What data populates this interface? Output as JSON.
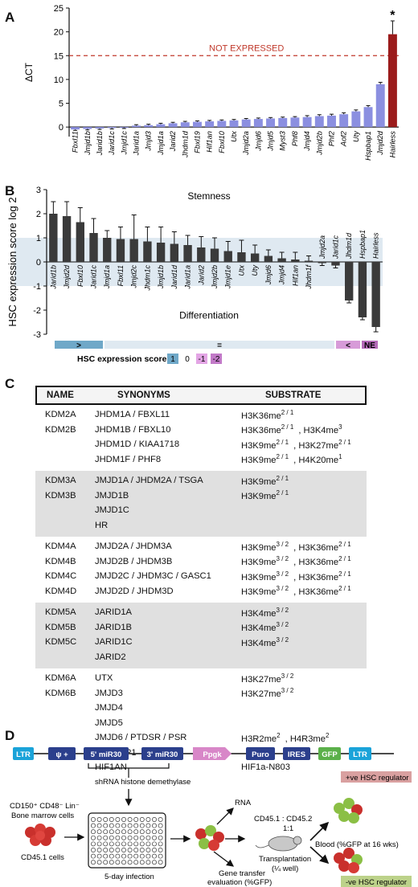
{
  "panels": {
    "a": "A",
    "b": "B",
    "c": "C",
    "d": "D"
  },
  "chart_data": [
    {
      "type": "bar",
      "ylabel": "ΔCT",
      "ylim": [
        -2,
        25
      ],
      "yticks": [
        0,
        5,
        10,
        15,
        20,
        25
      ],
      "reference_line": {
        "value": 15,
        "label": "NOT EXPRESSED",
        "color": "#c0392b"
      },
      "colors": {
        "bar": "#8b8fe0",
        "highlight": "#9b1b1b"
      },
      "categories": [
        "Fbxl11",
        "Jmjd1b",
        "Jarid1b",
        "Jarid1c",
        "Jmjd1c",
        "Jarid1a",
        "Jmjd3",
        "Jmjd1a",
        "Jarid2",
        "Jhdm1d",
        "Fbxl19",
        "Hif1an",
        "Fbxl10",
        "Utx",
        "Jmjd2a",
        "Jmjd6",
        "Jmjd5",
        "Myst3",
        "Phf8",
        "Jmjd4",
        "Jmjd2b",
        "Phf2",
        "Aof2",
        "Uty",
        "Hspbap1",
        "Jmjd2d",
        "Hairless"
      ],
      "values": [
        -0.5,
        -0.4,
        -0.3,
        -0.2,
        -0.1,
        0.3,
        0.4,
        0.6,
        0.8,
        1.0,
        1.1,
        1.2,
        1.3,
        1.4,
        1.6,
        1.7,
        1.8,
        1.9,
        2.0,
        2.1,
        2.3,
        2.4,
        2.7,
        3.3,
        4.2,
        9.0,
        19.5
      ],
      "errors": [
        0.2,
        0.2,
        0.2,
        0.2,
        0.2,
        0.2,
        0.2,
        0.2,
        0.2,
        0.2,
        0.2,
        0.2,
        0.2,
        0.2,
        0.2,
        0.2,
        0.2,
        0.2,
        0.2,
        0.3,
        0.3,
        0.3,
        0.3,
        0.3,
        0.3,
        0.4,
        2.8
      ],
      "annotation": "*"
    },
    {
      "type": "bar",
      "ylabel": "HSC expression score log 2",
      "ylim": [
        -3,
        3
      ],
      "yticks": [
        3,
        2,
        1,
        0,
        -1,
        -2,
        -3
      ],
      "band": [
        -1,
        1
      ],
      "colors": {
        "bar": "#3a3a3a",
        "band": "#dfe9f1"
      },
      "annotations": {
        "top": "Stemness",
        "bottom": "Differentiation"
      },
      "categories": [
        "Jarid1b",
        "Jmjd2d",
        "Fbxl10",
        "Jarid1c",
        "Jmjd1a",
        "Fbxl11",
        "Jmjd2c",
        "Jhdm1c",
        "Jmjd1b",
        "Jarid1d",
        "Jarid1a",
        "Jarid2",
        "Jmjd2b",
        "Jmjd1e",
        "Utx",
        "Uty",
        "Jmjd6",
        "Jmjd4",
        "Hif1an",
        "Jhdm1f",
        "Jmjd2a",
        "Jarid1c",
        "Jhdm1d",
        "Hspbap1",
        "Hairless"
      ],
      "values": [
        2.0,
        1.9,
        1.65,
        1.2,
        1.0,
        0.95,
        0.95,
        0.85,
        0.8,
        0.75,
        0.7,
        0.6,
        0.55,
        0.45,
        0.4,
        0.35,
        0.25,
        0.15,
        0.1,
        0.05,
        -0.05,
        -0.15,
        -1.6,
        -2.3,
        -2.7
      ],
      "errors": [
        0.5,
        0.6,
        0.6,
        0.6,
        0.3,
        0.5,
        1.0,
        0.6,
        0.65,
        0.5,
        0.4,
        0.45,
        0.45,
        0.4,
        0.5,
        0.35,
        0.25,
        0.25,
        0.3,
        0.2,
        0.1,
        0.1,
        0.1,
        0.1,
        0.2
      ],
      "labels_below": [
        true,
        true,
        true,
        true,
        true,
        true,
        true,
        true,
        true,
        true,
        true,
        true,
        true,
        true,
        true,
        true,
        true,
        true,
        true,
        true,
        false,
        false,
        false,
        false,
        false
      ],
      "score_bar": [
        {
          "label": ">",
          "color": "#6fa8c8"
        },
        {
          "label": "=",
          "color": "#dfe9f1"
        },
        {
          "label": "<",
          "color": "#d79bd8"
        },
        {
          "label": "NE",
          "color": "#b56ab9"
        }
      ],
      "score_legend": {
        "title": "HSC expression score",
        "items": [
          {
            "label": "1",
            "color": "#6fa8c8"
          },
          {
            "label": "0",
            "color": "none"
          },
          {
            "label": "-1",
            "color": "#e3a5e5"
          },
          {
            "label": "-2",
            "color": "#c27ac8"
          }
        ]
      }
    }
  ],
  "table": {
    "headers": {
      "name": "NAME",
      "synonyms": "SYNONYMS",
      "substrate": "SUBSTRATE"
    },
    "groups": [
      {
        "shaded": false,
        "rows": [
          {
            "name": "KDM2A",
            "syn": "JHDM1A / FBXL11",
            "sub": [
              {
                "t": "H3K36me",
                "s": "2 / 1"
              }
            ]
          },
          {
            "name": "KDM2B",
            "syn": "JHDM1B / FBXL10",
            "sub": [
              {
                "t": "H3K36me",
                "s": "2 / 1"
              },
              {
                "t": ", H3K4me",
                "s": "3"
              }
            ]
          },
          {
            "name": "",
            "syn": "JHDM1D / KIAA1718",
            "sub": [
              {
                "t": "H3K9me",
                "s": "2 / 1"
              },
              {
                "t": ", H3K27me",
                "s": "2 / 1"
              }
            ]
          },
          {
            "name": "",
            "syn": "JHDM1F / PHF8",
            "sub": [
              {
                "t": "H3K9me",
                "s": "2 / 1"
              },
              {
                "t": ", H4K20me",
                "s": "1"
              }
            ]
          }
        ]
      },
      {
        "shaded": true,
        "rows": [
          {
            "name": "KDM3A",
            "syn": "JMJD1A / JHDM2A / TSGA",
            "sub": [
              {
                "t": "H3K9me",
                "s": "2 / 1"
              }
            ]
          },
          {
            "name": "KDM3B",
            "syn": "JMJD1B",
            "sub": [
              {
                "t": "H3K9me",
                "s": "2 / 1"
              }
            ]
          },
          {
            "name": "",
            "syn": "JMJD1C",
            "sub": []
          },
          {
            "name": "",
            "syn": "HR",
            "sub": []
          }
        ]
      },
      {
        "shaded": false,
        "rows": [
          {
            "name": "KDM4A",
            "syn": "JMJD2A / JHDM3A",
            "sub": [
              {
                "t": "H3K9me",
                "s": "3 / 2"
              },
              {
                "t": ", H3K36me",
                "s": "2 / 1"
              }
            ]
          },
          {
            "name": "KDM4B",
            "syn": "JMJD2B / JHDM3B",
            "sub": [
              {
                "t": "H3K9me",
                "s": "3 / 2"
              },
              {
                "t": ", H3K36me",
                "s": "2 / 1"
              }
            ]
          },
          {
            "name": "KDM4C",
            "syn": "JMJD2C / JHDM3C / GASC1",
            "sub": [
              {
                "t": "H3K9me",
                "s": "3 / 2"
              },
              {
                "t": ", H3K36me",
                "s": "2 / 1"
              }
            ]
          },
          {
            "name": "KDM4D",
            "syn": "JMJD2D / JHDM3D",
            "sub": [
              {
                "t": "H3K9me",
                "s": "3 / 2"
              },
              {
                "t": ", H3K36me",
                "s": "2 / 1"
              }
            ]
          }
        ]
      },
      {
        "shaded": true,
        "rows": [
          {
            "name": "KDM5A",
            "syn": "JARID1A",
            "sub": [
              {
                "t": "H3K4me",
                "s": "3 / 2"
              }
            ]
          },
          {
            "name": "KDM5B",
            "syn": "JARID1B",
            "sub": [
              {
                "t": "H3K4me",
                "s": "3 / 2"
              }
            ]
          },
          {
            "name": "KDM5C",
            "syn": "JARID1C",
            "sub": [
              {
                "t": "H3K4me",
                "s": "3 / 2"
              }
            ]
          },
          {
            "name": "",
            "syn": "JARID2",
            "sub": []
          }
        ]
      },
      {
        "shaded": false,
        "rows": [
          {
            "name": "KDM6A",
            "syn": "UTX",
            "sub": [
              {
                "t": "H3K27me",
                "s": "3 / 2"
              }
            ]
          },
          {
            "name": "KDM6B",
            "syn": "JMJD3",
            "sub": [
              {
                "t": "H3K27me",
                "s": "3 / 2"
              }
            ]
          },
          {
            "name": "",
            "syn": "JMJD4",
            "sub": []
          },
          {
            "name": "",
            "syn": "JMJD5",
            "sub": []
          },
          {
            "name": "",
            "syn": "JMJD6 / PTDSR / PSR",
            "sub": [
              {
                "t": "H3R2me",
                "s": "2"
              },
              {
                "t": ", H4R3me",
                "s": "2"
              }
            ]
          },
          {
            "name": "",
            "syn": "HSPBAP1",
            "sub": []
          },
          {
            "name": "",
            "syn": "HIF1AN",
            "sub": [
              {
                "t": "HIF1a-N803",
                "s": ""
              }
            ]
          }
        ]
      }
    ]
  },
  "diagram": {
    "construct": [
      {
        "label": "LTR",
        "color": "#1aa3d9"
      },
      {
        "label": "ψ +",
        "color": "#2b3f8c"
      },
      {
        "label": "5' miR30",
        "color": "#2b3f8c"
      },
      {
        "label": "3' miR30",
        "color": "#2b3f8c"
      },
      {
        "label": "Ppgk",
        "color": "#d887c8"
      },
      {
        "label": "Puro",
        "color": "#2b3f8c"
      },
      {
        "label": "IRES",
        "color": "#2b3f8c"
      },
      {
        "label": "GFP",
        "color": "#5bb04a"
      },
      {
        "label": "LTR",
        "color": "#1aa3d9"
      }
    ],
    "shrna_label": "shRNA histone demethylase",
    "cells_label_1": "CD150⁺ CD48⁻ Lin⁻",
    "cells_label_2": "Bone marrow cells",
    "cells_label_3": "CD45.1 cells",
    "plate_label": "5-day infection",
    "rna_label": "RNA",
    "chimerism_label": "CD45.1 : CD45.2",
    "ratio_label": "1:1",
    "transplant_label": "Transplantation",
    "well_label": "(¼ well)",
    "gene_transfer_1": "Gene transfer",
    "gene_transfer_2": "evaluation (%GFP)",
    "blood_label": "Blood (%GFP at 16 wks)",
    "pos_regulator": "+ve HSC regulator",
    "neg_regulator": "-ve HSC regulator",
    "pos_color": "#d9a0a0",
    "neg_color": "#bcd28a"
  }
}
